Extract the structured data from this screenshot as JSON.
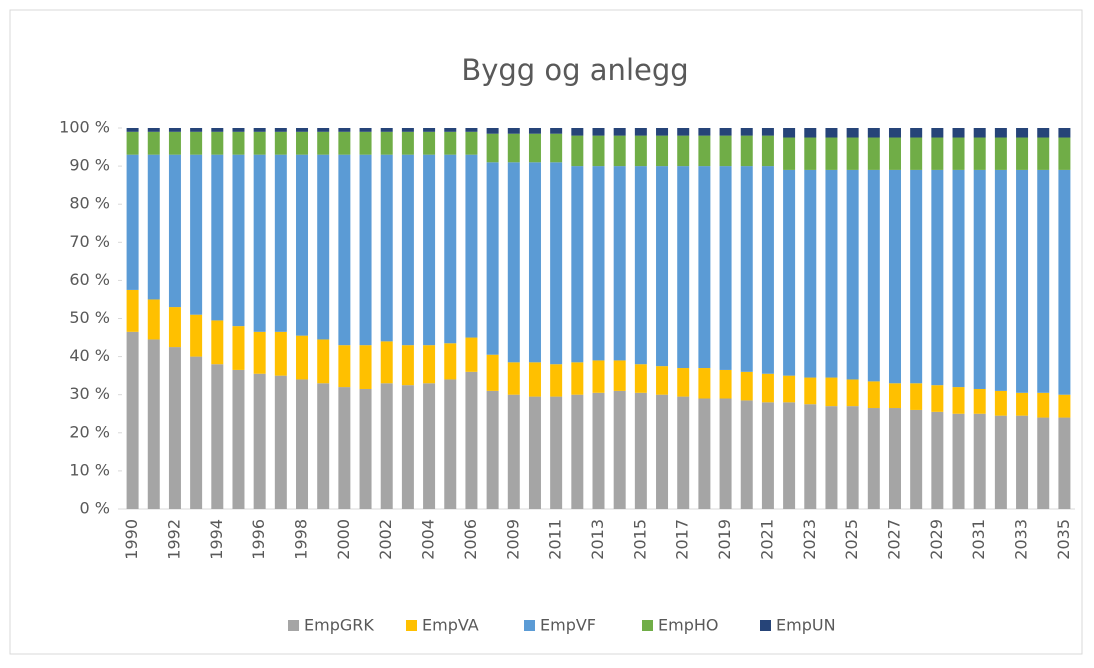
{
  "chart_data": {
    "type": "stacked_bar_100",
    "title": "Bygg og anlegg",
    "categories": [
      "1990",
      null,
      "1992",
      null,
      "1994",
      null,
      "1996",
      null,
      "1998",
      null,
      "2000",
      null,
      "2002",
      null,
      "2004",
      null,
      "2006",
      null,
      "2009",
      null,
      "2011",
      null,
      "2013",
      null,
      "2015",
      null,
      "2017",
      null,
      "2019",
      null,
      "2021",
      null,
      "2023",
      null,
      "2025",
      null,
      "2027",
      null,
      "2029",
      null,
      "2031",
      null,
      "2033",
      null,
      "2035"
    ],
    "series": [
      {
        "name": "EmpGRK",
        "color": "#a5a5a5",
        "values": [
          46.5,
          44.5,
          42.5,
          40,
          38,
          36.5,
          35.5,
          35,
          34,
          33,
          32,
          31.5,
          33,
          32.5,
          33,
          34,
          36,
          31,
          30,
          29.5,
          29.5,
          30,
          30.5,
          31,
          30.5,
          30,
          29.5,
          29,
          29,
          28.5,
          28,
          28,
          27.5,
          27,
          27,
          26.5,
          26.5,
          26,
          25.5,
          25,
          25,
          24.5,
          24.5,
          24,
          24
        ]
      },
      {
        "name": "EmpVA",
        "color": "#ffc000",
        "values": [
          11,
          10.5,
          10.5,
          11,
          11.5,
          11.5,
          11,
          11.5,
          11.5,
          11.5,
          11,
          11.5,
          11,
          10.5,
          10,
          9.5,
          9,
          9.5,
          8.5,
          9,
          8.5,
          8.5,
          8.5,
          8,
          7.5,
          7.5,
          7.5,
          8,
          7.5,
          7.5,
          7.5,
          7,
          7,
          7.5,
          7,
          7,
          6.5,
          7,
          7,
          7,
          6.5,
          6.5,
          6,
          6.5,
          6
        ]
      },
      {
        "name": "EmpVF",
        "color": "#5b9bd5",
        "values": [
          35.5,
          38,
          40,
          42,
          43.5,
          45,
          46.5,
          46.5,
          47.5,
          48.5,
          50,
          50,
          49,
          50,
          50,
          49.5,
          48,
          50.5,
          52.5,
          52.5,
          53,
          51.5,
          51,
          51,
          52,
          52.5,
          53,
          53,
          53.5,
          54,
          54.5,
          54,
          54.5,
          54.5,
          55,
          55.5,
          56,
          56,
          56.5,
          57,
          57.5,
          58,
          58.5,
          58.5,
          59
        ]
      },
      {
        "name": "EmpHO",
        "color": "#70ad47",
        "values": [
          6,
          6,
          6,
          6,
          6,
          6,
          6,
          6,
          6,
          6,
          6,
          6,
          6,
          6,
          6,
          6,
          6,
          7.5,
          7.5,
          7.5,
          7.5,
          8,
          8,
          8,
          8,
          8,
          8,
          8,
          8,
          8,
          8,
          8.5,
          8.5,
          8.5,
          8.5,
          8.5,
          8.5,
          8.5,
          8.5,
          8.5,
          8.5,
          8.5,
          8.5,
          8.5,
          8.5
        ]
      },
      {
        "name": "EmpUN",
        "color": "#264478",
        "values": [
          1,
          1,
          1,
          1,
          1,
          1,
          1,
          1,
          1,
          1,
          1,
          1,
          1,
          1,
          1,
          1,
          1,
          1.5,
          1.5,
          1.5,
          1.5,
          2,
          2,
          2,
          2,
          2,
          2,
          2,
          2,
          2,
          2,
          2.5,
          2.5,
          2.5,
          2.5,
          2.5,
          2.5,
          2.5,
          2.5,
          2.5,
          2.5,
          2.5,
          2.5,
          2.5,
          2.5
        ]
      }
    ],
    "ylim": [
      0,
      100
    ],
    "yticks": [
      {
        "value": 0,
        "label": "0 %"
      },
      {
        "value": 10,
        "label": "10 %"
      },
      {
        "value": 20,
        "label": "20 %"
      },
      {
        "value": 30,
        "label": "30 %"
      },
      {
        "value": 40,
        "label": "40 %"
      },
      {
        "value": 50,
        "label": "50 %"
      },
      {
        "value": 60,
        "label": "60 %"
      },
      {
        "value": 70,
        "label": "70 %"
      },
      {
        "value": 80,
        "label": "80 %"
      },
      {
        "value": 90,
        "label": "90 %"
      },
      {
        "value": 100,
        "label": "100 %"
      }
    ],
    "legend": "bottom"
  }
}
